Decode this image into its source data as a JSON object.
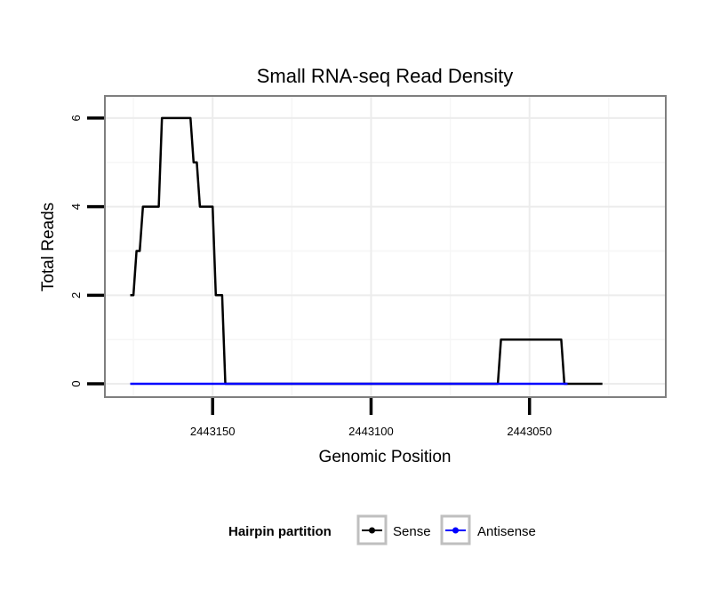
{
  "chart_data": {
    "type": "line",
    "title": "Small RNA-seq Read Density",
    "xlabel": "Genomic Position",
    "ylabel": "Total Reads",
    "x_reversed": true,
    "xlim": [
      2443184,
      2443007
    ],
    "ylim": [
      -0.3,
      6.5
    ],
    "x_ticks": [
      2443150,
      2443100,
      2443050
    ],
    "x_tick_labels": [
      "2443150",
      "2443100",
      "2443050"
    ],
    "y_ticks": [
      0,
      2,
      4,
      6
    ],
    "y_tick_labels": [
      "0",
      "2",
      "4",
      "6"
    ],
    "grid": true,
    "legend": {
      "title": "Hairpin partition",
      "position": "bottom",
      "entries": [
        {
          "name": "Sense",
          "color": "#000000"
        },
        {
          "name": "Antisense",
          "color": "#0000ff"
        }
      ]
    },
    "series": [
      {
        "name": "Sense",
        "color": "#000000",
        "x": [
          2443176,
          2443175,
          2443174,
          2443173,
          2443172,
          2443171,
          2443167,
          2443166,
          2443165,
          2443157,
          2443156,
          2443155,
          2443154,
          2443151,
          2443150,
          2443149,
          2443147,
          2443146,
          2443145,
          2443061,
          2443060,
          2443059,
          2443040,
          2443039,
          2443038,
          2443027
        ],
        "y": [
          2,
          2,
          3,
          3,
          4,
          4,
          4,
          6,
          6,
          6,
          5,
          5,
          4,
          4,
          4,
          2,
          2,
          0,
          0,
          0,
          0,
          1,
          1,
          0,
          0,
          0
        ]
      },
      {
        "name": "Antisense",
        "color": "#0000ff",
        "x": [
          2443176,
          2443146,
          2443145,
          2443038
        ],
        "y": [
          0,
          0,
          0,
          0
        ]
      }
    ]
  }
}
